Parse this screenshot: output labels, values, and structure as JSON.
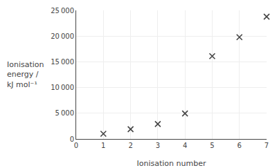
{
  "chart_data": {
    "type": "scatter",
    "xlabel": "Ionisation number",
    "ylabel": "Ionisation\nenergy /\nkJ mol⁻¹",
    "x": [
      1,
      2,
      3,
      4,
      5,
      6,
      7
    ],
    "values": [
      1012,
      1903,
      2912,
      4956,
      16091,
      19785,
      23780
    ],
    "color": "#444444",
    "marker": "x",
    "xlim": [
      0,
      7
    ],
    "ylim": [
      0,
      25000
    ],
    "xticks": [
      0,
      1,
      2,
      3,
      4,
      5,
      6,
      7
    ],
    "yticks": [
      0,
      {
        "value": 5000,
        "label": "5 000"
      },
      {
        "value": 10000,
        "label": "10 000"
      },
      {
        "value": 15000,
        "label": "15 000"
      },
      {
        "value": 20000,
        "label": "20 000"
      },
      {
        "value": 25000,
        "label": "25 000"
      }
    ],
    "grid": true
  }
}
